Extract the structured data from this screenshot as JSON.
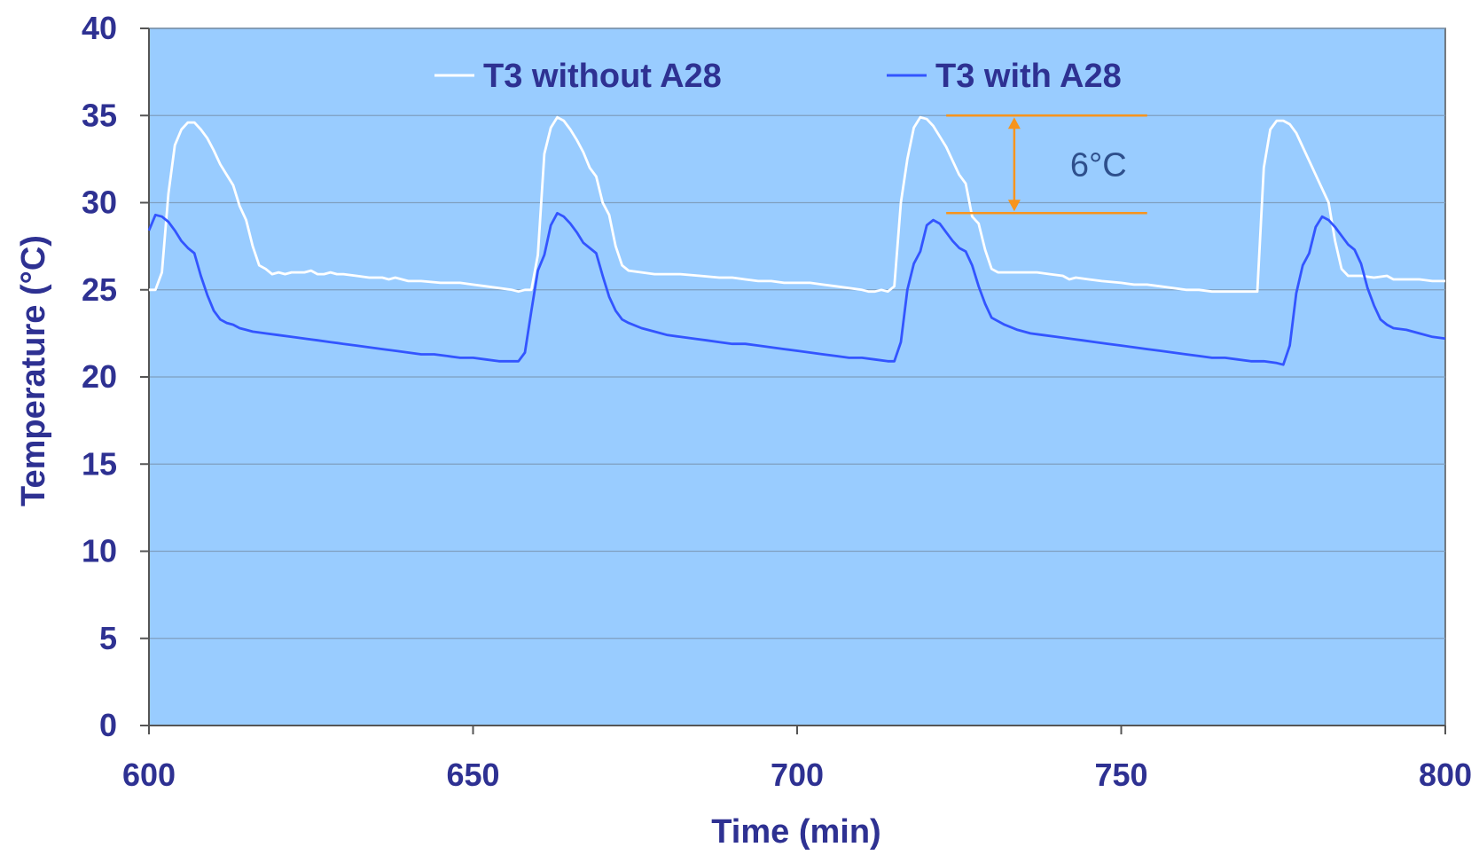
{
  "chart_data": {
    "type": "line",
    "xlabel": "Time (min)",
    "ylabel": "Temperature (°C)",
    "xlim": [
      600,
      800
    ],
    "ylim": [
      0,
      40
    ],
    "x_ticks": [
      600,
      650,
      700,
      750,
      800
    ],
    "x_tick_labels": [
      "600",
      "650",
      "700",
      "750",
      "800"
    ],
    "y_ticks": [
      0,
      5,
      10,
      15,
      20,
      25,
      30,
      35,
      40
    ],
    "y_tick_labels": [
      "0",
      "5",
      "10",
      "15",
      "20",
      "25",
      "30",
      "35",
      "40"
    ],
    "grid": "horizontal",
    "legend_position": "top",
    "colors": {
      "plot_background": "#99ccff",
      "text": "#2e3192",
      "series_without": "#ffffff",
      "series_with": "#3355ff",
      "annotation": "#f7941d",
      "annotation_text": "#2e4f8c",
      "axis": "#555555",
      "gridline": "#7f9fbf"
    },
    "series": [
      {
        "name": "T3 without A28",
        "color": "#ffffff",
        "points": [
          [
            600,
            25.0
          ],
          [
            601,
            25.0
          ],
          [
            602,
            26.0
          ],
          [
            603,
            30.5
          ],
          [
            604,
            33.3
          ],
          [
            605,
            34.2
          ],
          [
            606,
            34.6
          ],
          [
            607,
            34.6
          ],
          [
            608,
            34.2
          ],
          [
            609,
            33.7
          ],
          [
            610,
            33.0
          ],
          [
            611,
            32.2
          ],
          [
            612,
            31.6
          ],
          [
            613,
            31.0
          ],
          [
            614,
            29.8
          ],
          [
            615,
            29.0
          ],
          [
            616,
            27.5
          ],
          [
            617,
            26.4
          ],
          [
            618,
            26.2
          ],
          [
            619,
            25.9
          ],
          [
            620,
            26.0
          ],
          [
            621,
            25.9
          ],
          [
            622,
            26.0
          ],
          [
            623,
            26.0
          ],
          [
            624,
            26.0
          ],
          [
            625,
            26.1
          ],
          [
            626,
            25.9
          ],
          [
            627,
            25.9
          ],
          [
            628,
            26.0
          ],
          [
            629,
            25.9
          ],
          [
            630,
            25.9
          ],
          [
            632,
            25.8
          ],
          [
            634,
            25.7
          ],
          [
            636,
            25.7
          ],
          [
            637,
            25.6
          ],
          [
            638,
            25.7
          ],
          [
            640,
            25.5
          ],
          [
            642,
            25.5
          ],
          [
            645,
            25.4
          ],
          [
            648,
            25.4
          ],
          [
            650,
            25.3
          ],
          [
            652,
            25.2
          ],
          [
            654,
            25.1
          ],
          [
            656,
            25.0
          ],
          [
            657,
            24.9
          ],
          [
            658,
            25.0
          ],
          [
            659,
            25.0
          ],
          [
            660,
            27.0
          ],
          [
            661,
            32.8
          ],
          [
            662,
            34.3
          ],
          [
            663,
            34.9
          ],
          [
            664,
            34.7
          ],
          [
            665,
            34.2
          ],
          [
            666,
            33.6
          ],
          [
            667,
            32.9
          ],
          [
            668,
            32.0
          ],
          [
            669,
            31.5
          ],
          [
            670,
            30.0
          ],
          [
            671,
            29.3
          ],
          [
            672,
            27.5
          ],
          [
            673,
            26.4
          ],
          [
            674,
            26.1
          ],
          [
            676,
            26.0
          ],
          [
            678,
            25.9
          ],
          [
            680,
            25.9
          ],
          [
            682,
            25.9
          ],
          [
            685,
            25.8
          ],
          [
            688,
            25.7
          ],
          [
            690,
            25.7
          ],
          [
            692,
            25.6
          ],
          [
            694,
            25.5
          ],
          [
            696,
            25.5
          ],
          [
            698,
            25.4
          ],
          [
            700,
            25.4
          ],
          [
            702,
            25.4
          ],
          [
            704,
            25.3
          ],
          [
            706,
            25.2
          ],
          [
            708,
            25.1
          ],
          [
            710,
            25.0
          ],
          [
            711,
            24.9
          ],
          [
            712,
            24.9
          ],
          [
            713,
            25.0
          ],
          [
            714,
            24.9
          ],
          [
            715,
            25.2
          ],
          [
            716,
            30.0
          ],
          [
            717,
            32.5
          ],
          [
            718,
            34.3
          ],
          [
            719,
            34.9
          ],
          [
            720,
            34.8
          ],
          [
            721,
            34.4
          ],
          [
            722,
            33.8
          ],
          [
            723,
            33.2
          ],
          [
            724,
            32.4
          ],
          [
            725,
            31.6
          ],
          [
            726,
            31.1
          ],
          [
            727,
            29.2
          ],
          [
            728,
            28.8
          ],
          [
            729,
            27.3
          ],
          [
            730,
            26.2
          ],
          [
            731,
            26.0
          ],
          [
            733,
            26.0
          ],
          [
            735,
            26.0
          ],
          [
            737,
            26.0
          ],
          [
            739,
            25.9
          ],
          [
            741,
            25.8
          ],
          [
            742,
            25.6
          ],
          [
            743,
            25.7
          ],
          [
            745,
            25.6
          ],
          [
            747,
            25.5
          ],
          [
            750,
            25.4
          ],
          [
            752,
            25.3
          ],
          [
            754,
            25.3
          ],
          [
            756,
            25.2
          ],
          [
            758,
            25.1
          ],
          [
            760,
            25.0
          ],
          [
            762,
            25.0
          ],
          [
            764,
            24.9
          ],
          [
            766,
            24.9
          ],
          [
            768,
            24.9
          ],
          [
            770,
            24.9
          ],
          [
            771,
            24.9
          ],
          [
            772,
            32.0
          ],
          [
            773,
            34.2
          ],
          [
            774,
            34.7
          ],
          [
            775,
            34.7
          ],
          [
            776,
            34.5
          ],
          [
            777,
            34.0
          ],
          [
            778,
            33.2
          ],
          [
            779,
            32.4
          ],
          [
            780,
            31.6
          ],
          [
            781,
            30.8
          ],
          [
            782,
            30.0
          ],
          [
            783,
            27.8
          ],
          [
            784,
            26.2
          ],
          [
            785,
            25.8
          ],
          [
            787,
            25.8
          ],
          [
            789,
            25.7
          ],
          [
            791,
            25.8
          ],
          [
            792,
            25.6
          ],
          [
            794,
            25.6
          ],
          [
            796,
            25.6
          ],
          [
            798,
            25.5
          ],
          [
            800,
            25.5
          ]
        ]
      },
      {
        "name": "T3 with A28",
        "color": "#3355ff",
        "points": [
          [
            600,
            28.4
          ],
          [
            601,
            29.3
          ],
          [
            602,
            29.2
          ],
          [
            603,
            28.9
          ],
          [
            604,
            28.4
          ],
          [
            605,
            27.8
          ],
          [
            606,
            27.4
          ],
          [
            607,
            27.1
          ],
          [
            608,
            25.8
          ],
          [
            609,
            24.7
          ],
          [
            610,
            23.8
          ],
          [
            611,
            23.3
          ],
          [
            612,
            23.1
          ],
          [
            613,
            23.0
          ],
          [
            614,
            22.8
          ],
          [
            615,
            22.7
          ],
          [
            616,
            22.6
          ],
          [
            618,
            22.5
          ],
          [
            620,
            22.4
          ],
          [
            622,
            22.3
          ],
          [
            624,
            22.2
          ],
          [
            626,
            22.1
          ],
          [
            628,
            22.0
          ],
          [
            630,
            21.9
          ],
          [
            632,
            21.8
          ],
          [
            634,
            21.7
          ],
          [
            636,
            21.6
          ],
          [
            638,
            21.5
          ],
          [
            640,
            21.4
          ],
          [
            642,
            21.3
          ],
          [
            644,
            21.3
          ],
          [
            646,
            21.2
          ],
          [
            648,
            21.1
          ],
          [
            650,
            21.1
          ],
          [
            652,
            21.0
          ],
          [
            654,
            20.9
          ],
          [
            656,
            20.9
          ],
          [
            657,
            20.9
          ],
          [
            658,
            21.4
          ],
          [
            659,
            23.8
          ],
          [
            660,
            26.1
          ],
          [
            661,
            27.0
          ],
          [
            662,
            28.7
          ],
          [
            663,
            29.4
          ],
          [
            664,
            29.2
          ],
          [
            665,
            28.8
          ],
          [
            666,
            28.3
          ],
          [
            667,
            27.7
          ],
          [
            668,
            27.4
          ],
          [
            669,
            27.1
          ],
          [
            670,
            25.8
          ],
          [
            671,
            24.6
          ],
          [
            672,
            23.8
          ],
          [
            673,
            23.3
          ],
          [
            674,
            23.1
          ],
          [
            676,
            22.8
          ],
          [
            678,
            22.6
          ],
          [
            680,
            22.4
          ],
          [
            682,
            22.3
          ],
          [
            684,
            22.2
          ],
          [
            686,
            22.1
          ],
          [
            688,
            22.0
          ],
          [
            690,
            21.9
          ],
          [
            692,
            21.9
          ],
          [
            694,
            21.8
          ],
          [
            696,
            21.7
          ],
          [
            698,
            21.6
          ],
          [
            700,
            21.5
          ],
          [
            702,
            21.4
          ],
          [
            704,
            21.3
          ],
          [
            706,
            21.2
          ],
          [
            708,
            21.1
          ],
          [
            710,
            21.1
          ],
          [
            712,
            21.0
          ],
          [
            714,
            20.9
          ],
          [
            715,
            20.9
          ],
          [
            716,
            22.0
          ],
          [
            717,
            25.0
          ],
          [
            718,
            26.5
          ],
          [
            719,
            27.2
          ],
          [
            720,
            28.7
          ],
          [
            721,
            29.0
          ],
          [
            722,
            28.8
          ],
          [
            723,
            28.3
          ],
          [
            724,
            27.8
          ],
          [
            725,
            27.4
          ],
          [
            726,
            27.2
          ],
          [
            727,
            26.4
          ],
          [
            728,
            25.2
          ],
          [
            729,
            24.2
          ],
          [
            730,
            23.4
          ],
          [
            732,
            23.0
          ],
          [
            734,
            22.7
          ],
          [
            736,
            22.5
          ],
          [
            738,
            22.4
          ],
          [
            740,
            22.3
          ],
          [
            742,
            22.2
          ],
          [
            744,
            22.1
          ],
          [
            746,
            22.0
          ],
          [
            748,
            21.9
          ],
          [
            750,
            21.8
          ],
          [
            752,
            21.7
          ],
          [
            754,
            21.6
          ],
          [
            756,
            21.5
          ],
          [
            758,
            21.4
          ],
          [
            760,
            21.3
          ],
          [
            762,
            21.2
          ],
          [
            764,
            21.1
          ],
          [
            766,
            21.1
          ],
          [
            768,
            21.0
          ],
          [
            770,
            20.9
          ],
          [
            772,
            20.9
          ],
          [
            774,
            20.8
          ],
          [
            775,
            20.7
          ],
          [
            776,
            21.8
          ],
          [
            777,
            24.8
          ],
          [
            778,
            26.4
          ],
          [
            779,
            27.1
          ],
          [
            780,
            28.6
          ],
          [
            781,
            29.2
          ],
          [
            782,
            29.0
          ],
          [
            783,
            28.6
          ],
          [
            784,
            28.1
          ],
          [
            785,
            27.6
          ],
          [
            786,
            27.3
          ],
          [
            787,
            26.5
          ],
          [
            788,
            25.1
          ],
          [
            789,
            24.1
          ],
          [
            790,
            23.3
          ],
          [
            791,
            23.0
          ],
          [
            792,
            22.8
          ],
          [
            794,
            22.7
          ],
          [
            796,
            22.5
          ],
          [
            798,
            22.3
          ],
          [
            800,
            22.2
          ]
        ]
      }
    ],
    "annotation": {
      "text": "6°C",
      "upper_y": 35,
      "lower_y": 29.4,
      "x_start": 723,
      "x_end": 754,
      "arrow_x": 733.5
    }
  }
}
